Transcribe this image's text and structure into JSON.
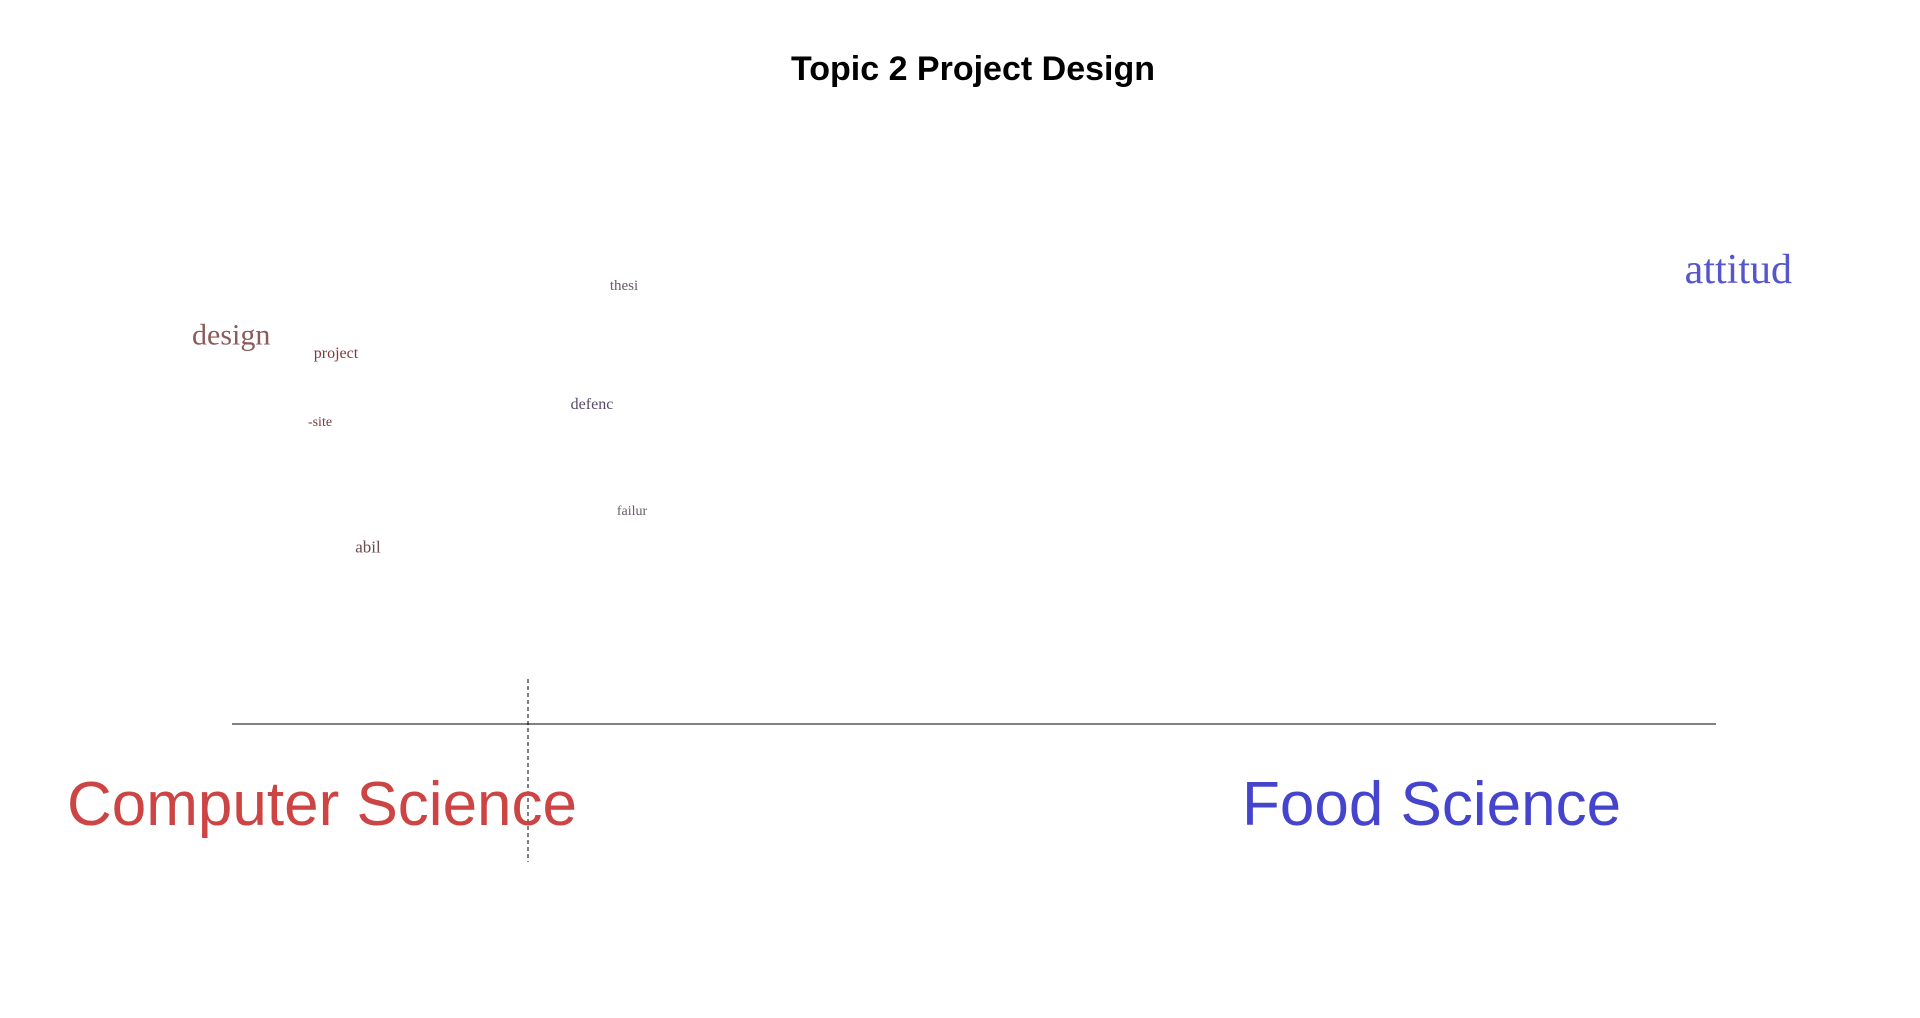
{
  "chart_data": {
    "type": "scatter",
    "title": "Topic 2 Project Design",
    "groups": [
      {
        "name": "Computer Science",
        "color": "#cc4444"
      },
      {
        "name": "Food Science",
        "color": "#4444cc"
      }
    ],
    "xlim": [
      0,
      1
    ],
    "ylim": [
      0,
      1
    ],
    "divider_x": 0.2,
    "grid": false,
    "words": [
      {
        "word": "design",
        "x": 0.0,
        "y": 0.82,
        "weight": 1.0,
        "color": "#8b5a5a"
      },
      {
        "word": "thesi",
        "x": 0.27,
        "y": 0.98,
        "weight": 0.25,
        "color": "#6a5a6a"
      },
      {
        "word": "project",
        "x": 0.09,
        "y": 0.78,
        "weight": 0.3,
        "color": "#7a3a3a"
      },
      {
        "word": "defenc",
        "x": 0.25,
        "y": 0.63,
        "weight": 0.28,
        "color": "#5a4a6a"
      },
      {
        "word": "-site",
        "x": 0.08,
        "y": 0.58,
        "weight": 0.22,
        "color": "#7a3a3a"
      },
      {
        "word": "failur",
        "x": 0.275,
        "y": 0.32,
        "weight": 0.2,
        "color": "#6a5a6a"
      },
      {
        "word": "abil",
        "x": 0.11,
        "y": 0.21,
        "weight": 0.33,
        "color": "#6a4a4a"
      },
      {
        "word": "attitud",
        "x": 1.0,
        "y": 1.0,
        "weight": 1.6,
        "color": "#5555cc"
      }
    ]
  }
}
